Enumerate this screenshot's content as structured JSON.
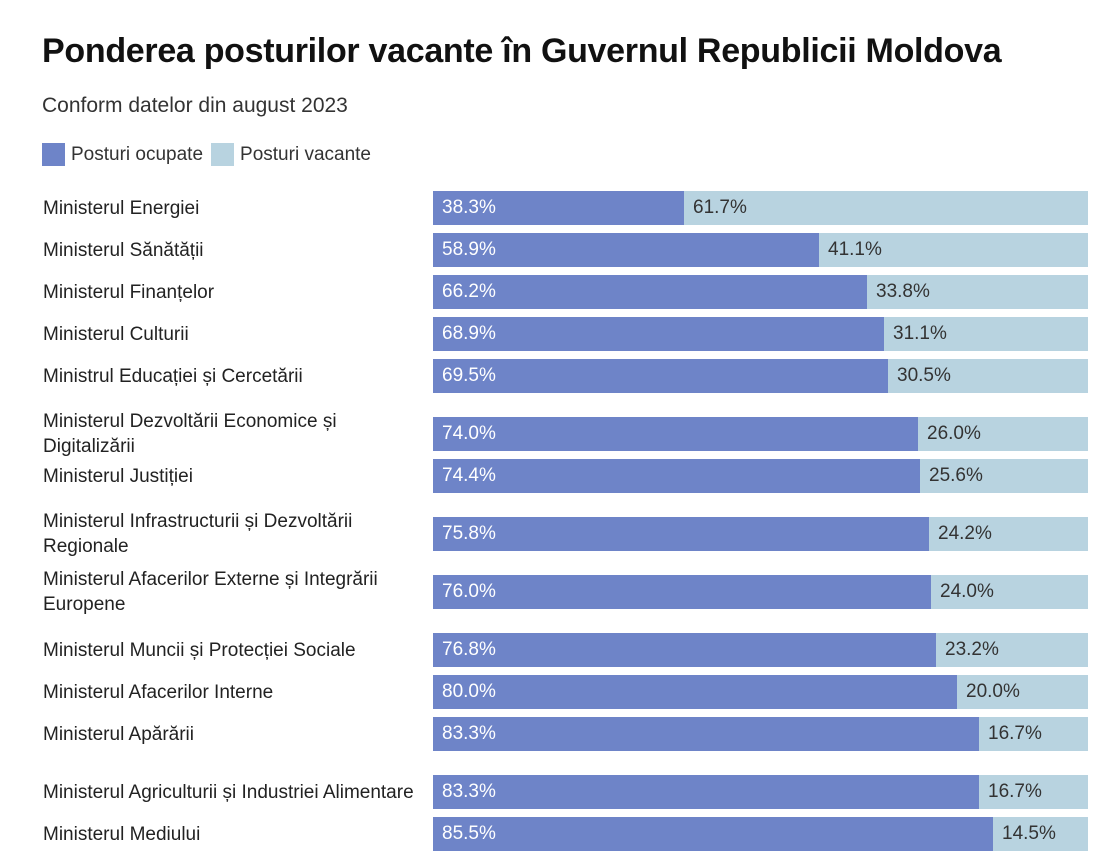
{
  "colors": {
    "occupied": "#6e84c8",
    "vacant": "#b8d3e0"
  },
  "chart_data": {
    "type": "bar",
    "orientation": "horizontal",
    "stacked": true,
    "normalized_percent": true,
    "title": "Ponderea posturilor vacante în Guvernul Republicii Moldova",
    "subtitle": "Conform datelor din august 2023",
    "legend_position": "top-left",
    "categories": [
      "Ministerul Energiei",
      "Ministerul Sănătății",
      "Ministerul Finanțelor",
      "Ministerul Culturii",
      "Ministrul Educației și Cercetării",
      "Ministerul Dezvoltării Economice și Digitalizării",
      "Ministerul Justiției",
      "Ministerul Infrastructurii și Dezvoltării Regionale",
      "Ministerul Afacerilor Externe și Integrării Europene",
      "Ministerul Muncii și Protecției Sociale",
      "Ministerul Afacerilor Interne",
      "Ministerul Apărării",
      "Ministerul Agriculturii și Industriei Alimentare",
      "Ministerul Mediului"
    ],
    "series": [
      {
        "name": "Posturi ocupate",
        "values": [
          38.3,
          58.9,
          66.2,
          68.9,
          69.5,
          74.0,
          74.4,
          75.8,
          76.0,
          76.8,
          80.0,
          83.3,
          83.3,
          85.5
        ],
        "labels": [
          "38.3%",
          "58.9%",
          "66.2%",
          "68.9%",
          "69.5%",
          "74.0%",
          "74.4%",
          "75.8%",
          "76.0%",
          "76.8%",
          "80.0%",
          "83.3%",
          "83.3%",
          "85.5%"
        ]
      },
      {
        "name": "Posturi vacante",
        "values": [
          61.7,
          41.1,
          33.8,
          31.1,
          30.5,
          26.0,
          25.6,
          24.2,
          24.0,
          23.2,
          20.0,
          16.7,
          16.7,
          14.5
        ],
        "labels": [
          "61.7%",
          "41.1%",
          "33.8%",
          "31.1%",
          "30.5%",
          "26.0%",
          "25.6%",
          "24.2%",
          "24.0%",
          "23.2%",
          "20.0%",
          "16.7%",
          "16.7%",
          "14.5%"
        ]
      }
    ],
    "xlim": [
      0,
      100
    ],
    "grid": false
  }
}
